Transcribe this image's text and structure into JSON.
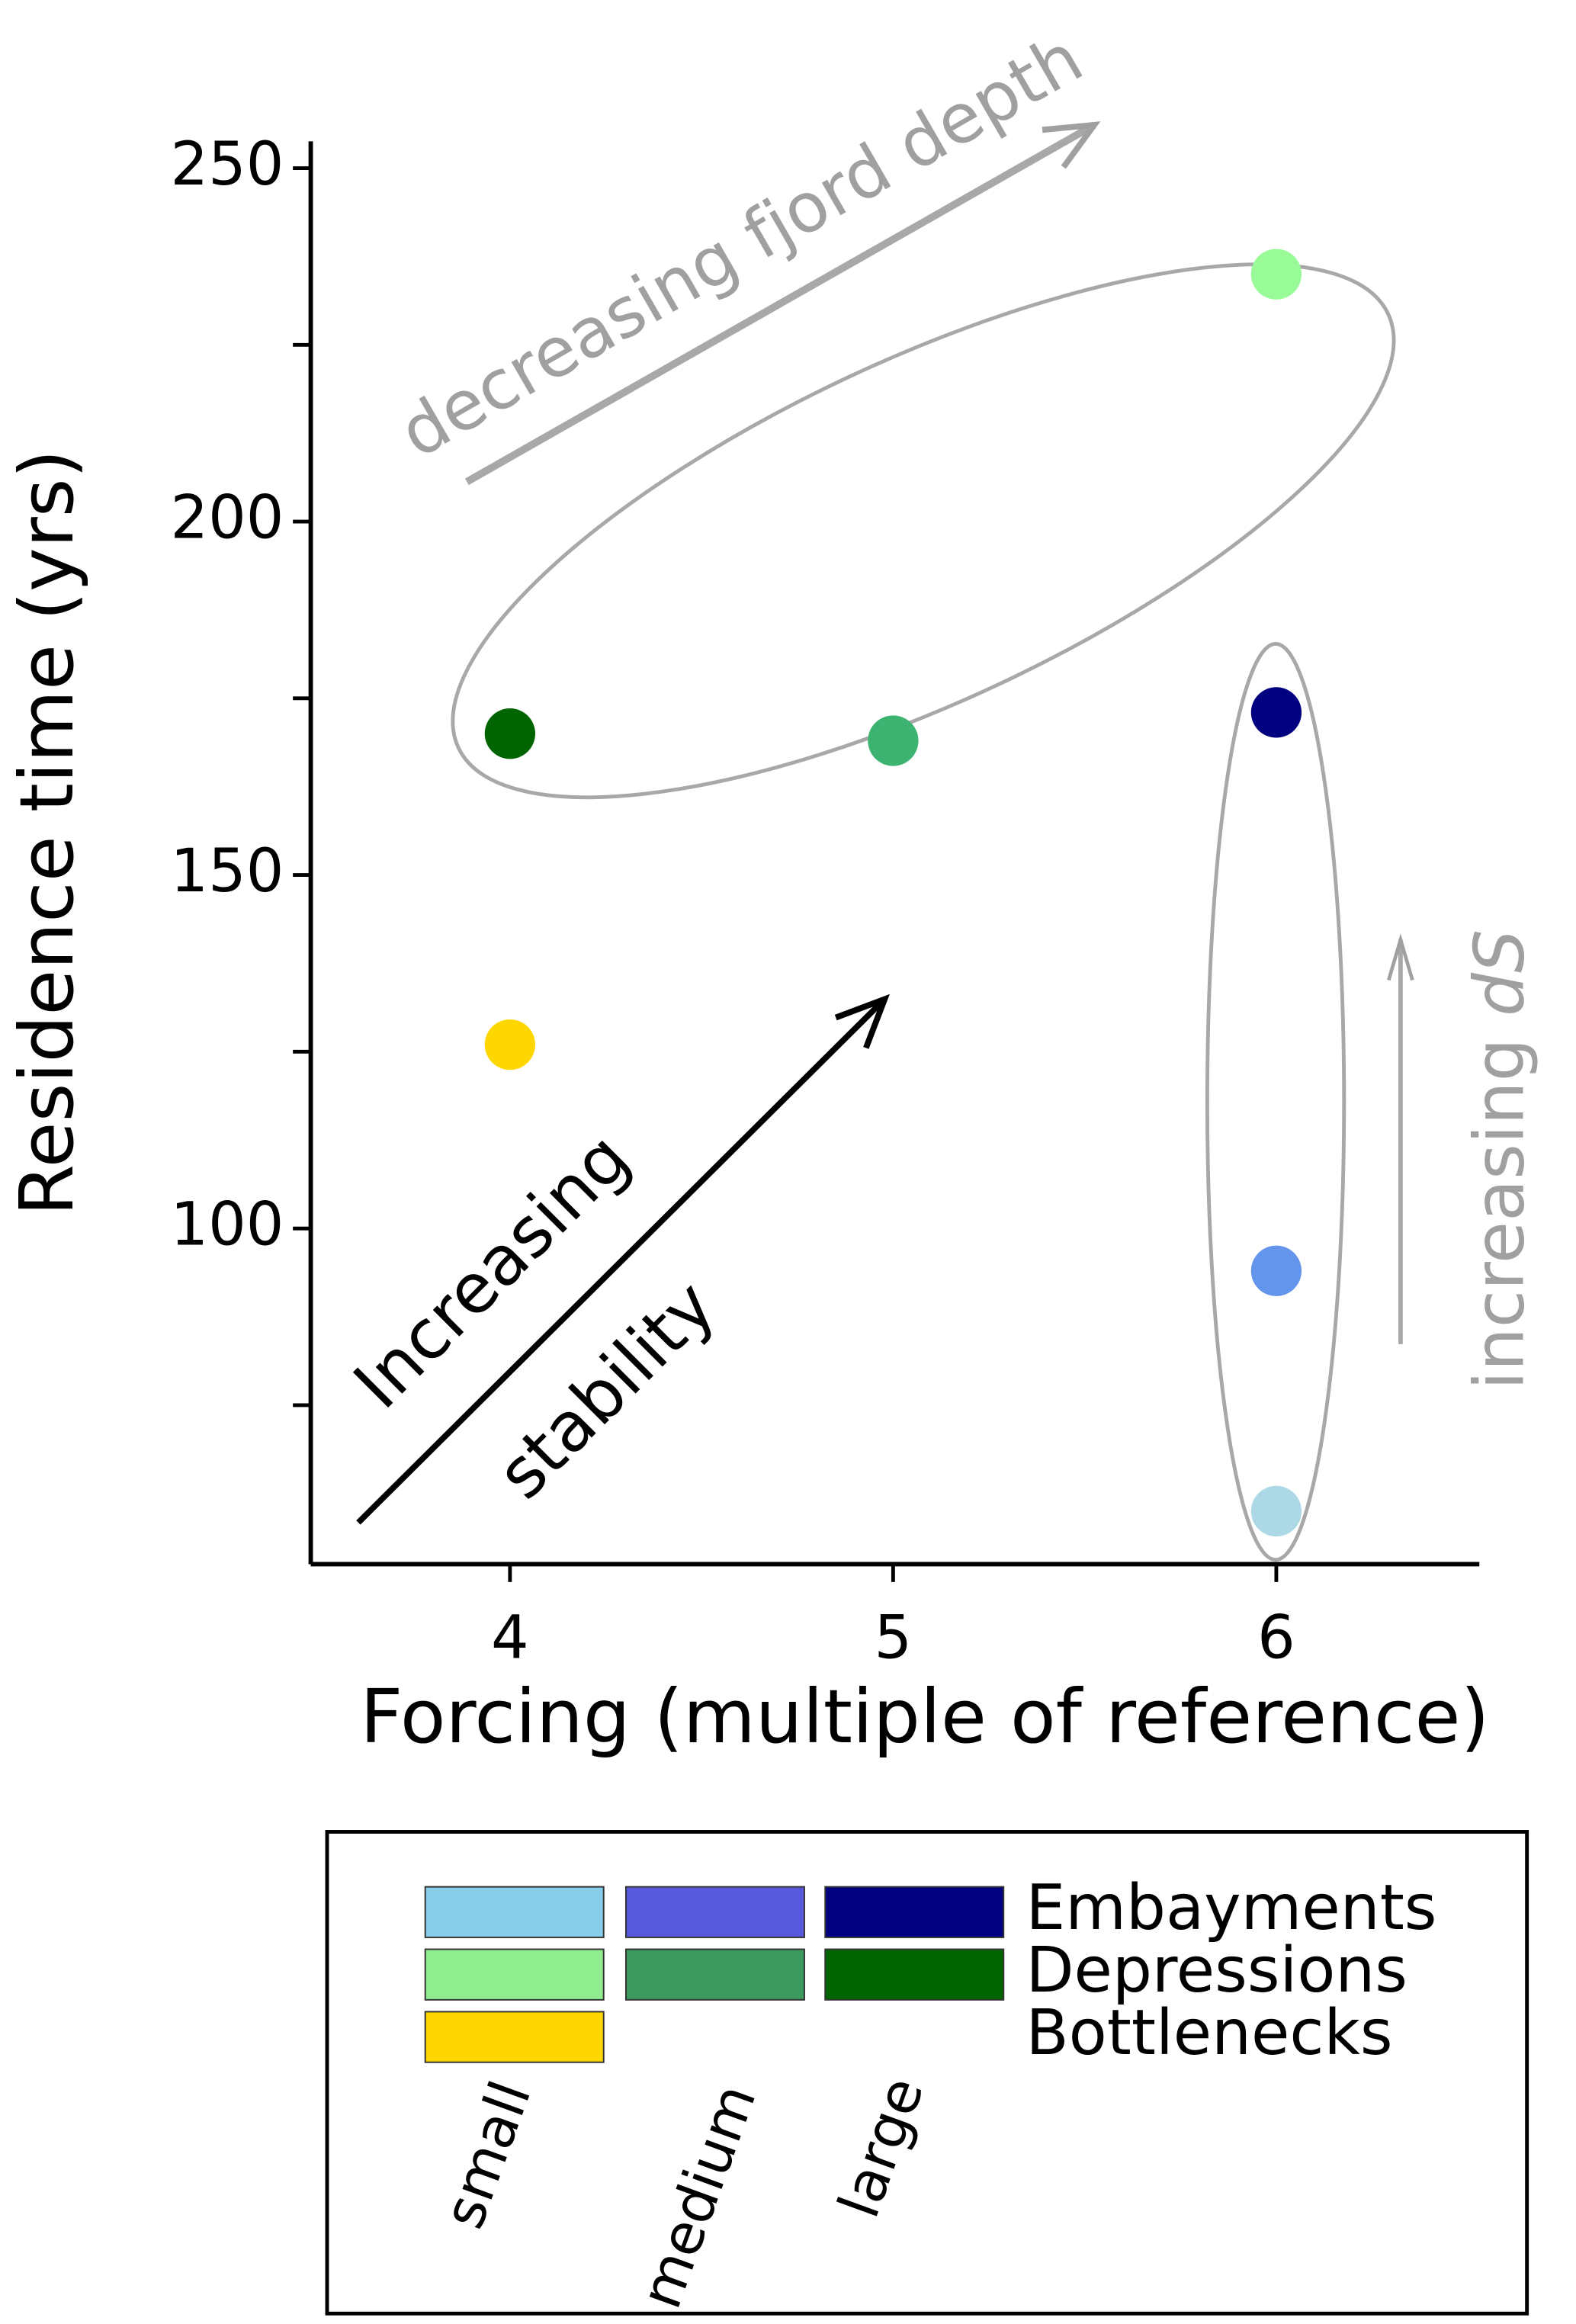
{
  "chart_data": {
    "type": "scatter",
    "x_label": "Forcing (multiple of reference)",
    "y_label": "Residence time (yrs)",
    "x": [
      6,
      6,
      6,
      6,
      5,
      4,
      4
    ],
    "y": [
      60,
      94,
      173,
      235,
      169,
      170,
      126
    ],
    "colors": [
      "#add8e6",
      "#6495ed",
      "#000080",
      "#98fb98",
      "#3cb371",
      "#006400",
      "#ffd700"
    ],
    "xlim": [
      3.48,
      6.53
    ],
    "ylim": [
      52.5,
      253.8
    ],
    "xticks": [
      4,
      5,
      6
    ],
    "yticks": [
      100,
      150,
      200,
      250
    ],
    "yminor_ticks": [
      75,
      125,
      175,
      225
    ],
    "annotations": [
      "decreasing fjord depth",
      "Increasing",
      "stability",
      "increasing ",
      "dS"
    ],
    "legend": {
      "rows": [
        {
          "label": "Embayments",
          "colors": [
            "#87ceeb",
            "#5858dd",
            "#000080"
          ]
        },
        {
          "label": "Depressions",
          "colors": [
            "#90ee90",
            "#3c9a5f",
            "#006400"
          ]
        },
        {
          "label": "Bottlenecks",
          "colors": [
            "#ffd700"
          ]
        }
      ],
      "columns": [
        "small",
        "medium",
        "large"
      ]
    }
  }
}
